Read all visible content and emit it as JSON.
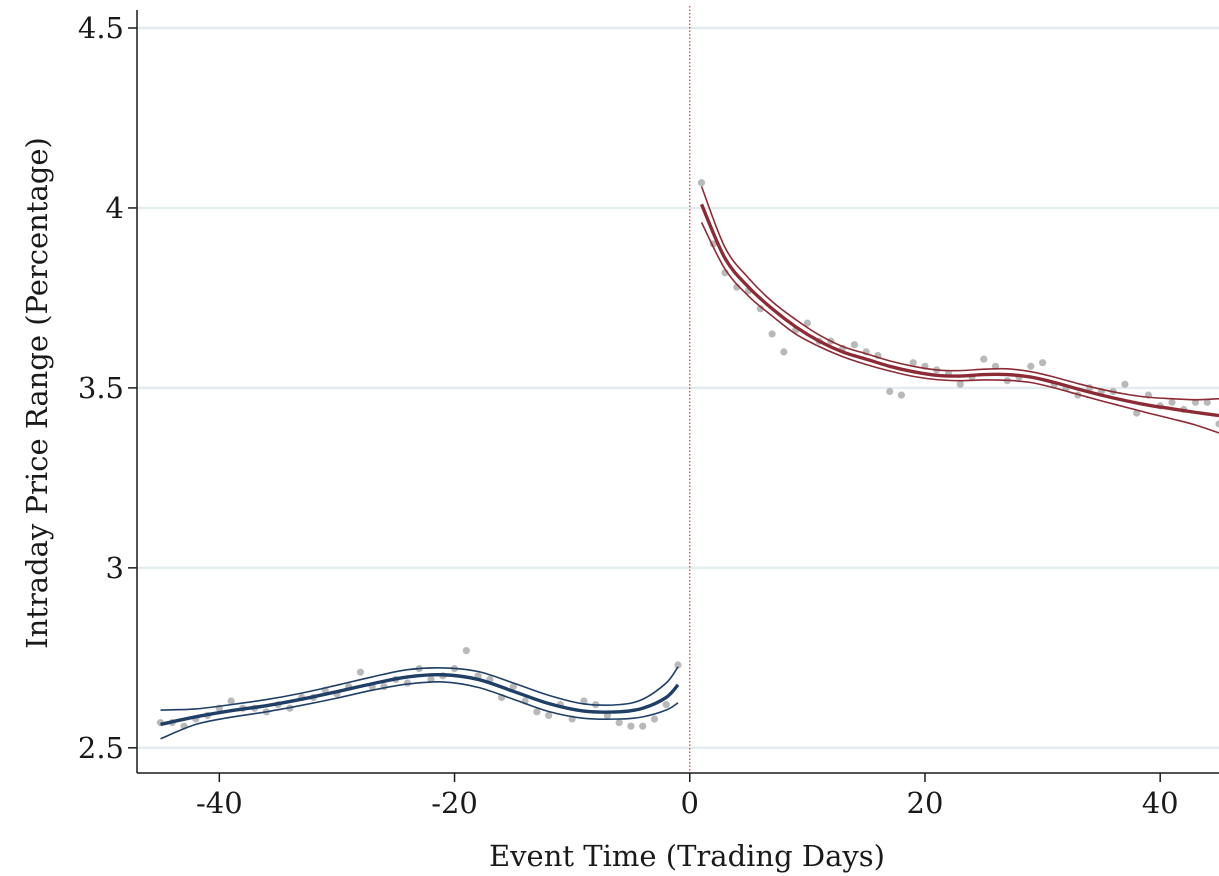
{
  "chart_data": {
    "type": "scatter",
    "title": "",
    "xlabel": "Event Time (Trading Days)",
    "ylabel": "Intraday Price Range (Percentage)",
    "xlim": [
      -47,
      45
    ],
    "ylim": [
      2.43,
      4.55
    ],
    "x_ticks": [
      -40,
      -20,
      0,
      20,
      40
    ],
    "x_tick_labels": [
      "-40",
      "-20",
      "0",
      "20",
      "40"
    ],
    "y_ticks": [
      2.5,
      3,
      3.5,
      4,
      4.5
    ],
    "y_tick_labels": [
      "2.5",
      "3",
      "3.5",
      "4",
      "4.5"
    ],
    "grid": "horizontal",
    "event_line_x": 0,
    "colors": {
      "pre": "#1f3f66",
      "post": "#8c2b35",
      "points": "#b9b9b9",
      "grid": "#e3ecee",
      "event_line": "#e03030"
    },
    "scatter_points": {
      "x": [
        -45,
        -44,
        -43,
        -42,
        -41,
        -40,
        -39,
        -38,
        -37,
        -36,
        -35,
        -34,
        -33,
        -32,
        -31,
        -30,
        -29,
        -28,
        -27,
        -26,
        -25,
        -24,
        -23,
        -22,
        -21,
        -20,
        -19,
        -18,
        -17,
        -16,
        -15,
        -14,
        -13,
        -12,
        -11,
        -10,
        -9,
        -8,
        -7,
        -6,
        -5,
        -4,
        -3,
        -2,
        -1,
        1,
        2,
        3,
        4,
        5,
        6,
        7,
        8,
        9,
        10,
        11,
        12,
        13,
        14,
        15,
        16,
        17,
        18,
        19,
        20,
        21,
        22,
        23,
        24,
        25,
        26,
        27,
        28,
        29,
        30,
        31,
        32,
        33,
        34,
        35,
        36,
        37,
        38,
        39,
        40,
        41,
        42,
        43,
        44,
        45
      ],
      "y": [
        2.57,
        2.57,
        2.56,
        2.58,
        2.59,
        2.61,
        2.63,
        2.61,
        2.61,
        2.6,
        2.62,
        2.61,
        2.64,
        2.64,
        2.66,
        2.65,
        2.67,
        2.71,
        2.67,
        2.67,
        2.69,
        2.68,
        2.72,
        2.69,
        2.7,
        2.72,
        2.77,
        2.7,
        2.69,
        2.64,
        2.67,
        2.63,
        2.6,
        2.59,
        2.62,
        2.58,
        2.63,
        2.62,
        2.59,
        2.57,
        2.56,
        2.56,
        2.58,
        2.62,
        2.73,
        4.07,
        3.9,
        3.82,
        3.78,
        3.77,
        3.72,
        3.65,
        3.6,
        3.66,
        3.68,
        3.63,
        3.63,
        3.61,
        3.62,
        3.6,
        3.59,
        3.49,
        3.48,
        3.57,
        3.56,
        3.55,
        3.54,
        3.51,
        3.53,
        3.58,
        3.56,
        3.52,
        3.53,
        3.56,
        3.57,
        3.51,
        3.5,
        3.48,
        3.5,
        3.49,
        3.49,
        3.51,
        3.43,
        3.48,
        3.45,
        3.46,
        3.44,
        3.46,
        3.46,
        3.4
      ]
    },
    "series": [
      {
        "segment": "pre",
        "x": [
          -45,
          -42,
          -39,
          -36,
          -33,
          -30,
          -27,
          -24,
          -21,
          -18,
          -15,
          -12,
          -9,
          -6,
          -4,
          -2,
          -1
        ],
        "fit": [
          2.565,
          2.586,
          2.603,
          2.617,
          2.635,
          2.656,
          2.678,
          2.697,
          2.703,
          2.69,
          2.657,
          2.623,
          2.602,
          2.6,
          2.61,
          2.64,
          2.675
        ],
        "lower": [
          2.525,
          2.565,
          2.585,
          2.6,
          2.618,
          2.638,
          2.66,
          2.677,
          2.683,
          2.668,
          2.635,
          2.601,
          2.582,
          2.58,
          2.586,
          2.605,
          2.625
        ],
        "upper": [
          2.605,
          2.608,
          2.62,
          2.634,
          2.652,
          2.674,
          2.697,
          2.717,
          2.722,
          2.712,
          2.68,
          2.646,
          2.622,
          2.62,
          2.635,
          2.68,
          2.725
        ]
      },
      {
        "segment": "post",
        "x": [
          1,
          3,
          5,
          7,
          9,
          11,
          13,
          15,
          17,
          19,
          21,
          23,
          25,
          27,
          29,
          31,
          33,
          35,
          37,
          39,
          41,
          43,
          45
        ],
        "fit": [
          4.01,
          3.86,
          3.78,
          3.72,
          3.67,
          3.63,
          3.6,
          3.58,
          3.56,
          3.545,
          3.535,
          3.533,
          3.537,
          3.537,
          3.53,
          3.515,
          3.497,
          3.48,
          3.465,
          3.452,
          3.442,
          3.432,
          3.423
        ],
        "lower": [
          3.96,
          3.83,
          3.755,
          3.7,
          3.65,
          3.615,
          3.587,
          3.565,
          3.547,
          3.532,
          3.523,
          3.52,
          3.522,
          3.521,
          3.515,
          3.5,
          3.482,
          3.464,
          3.447,
          3.43,
          3.414,
          3.397,
          3.375
        ],
        "upper": [
          4.06,
          3.89,
          3.805,
          3.74,
          3.69,
          3.647,
          3.615,
          3.595,
          3.575,
          3.56,
          3.55,
          3.548,
          3.552,
          3.553,
          3.545,
          3.53,
          3.512,
          3.496,
          3.483,
          3.474,
          3.47,
          3.467,
          3.47
        ]
      }
    ]
  }
}
